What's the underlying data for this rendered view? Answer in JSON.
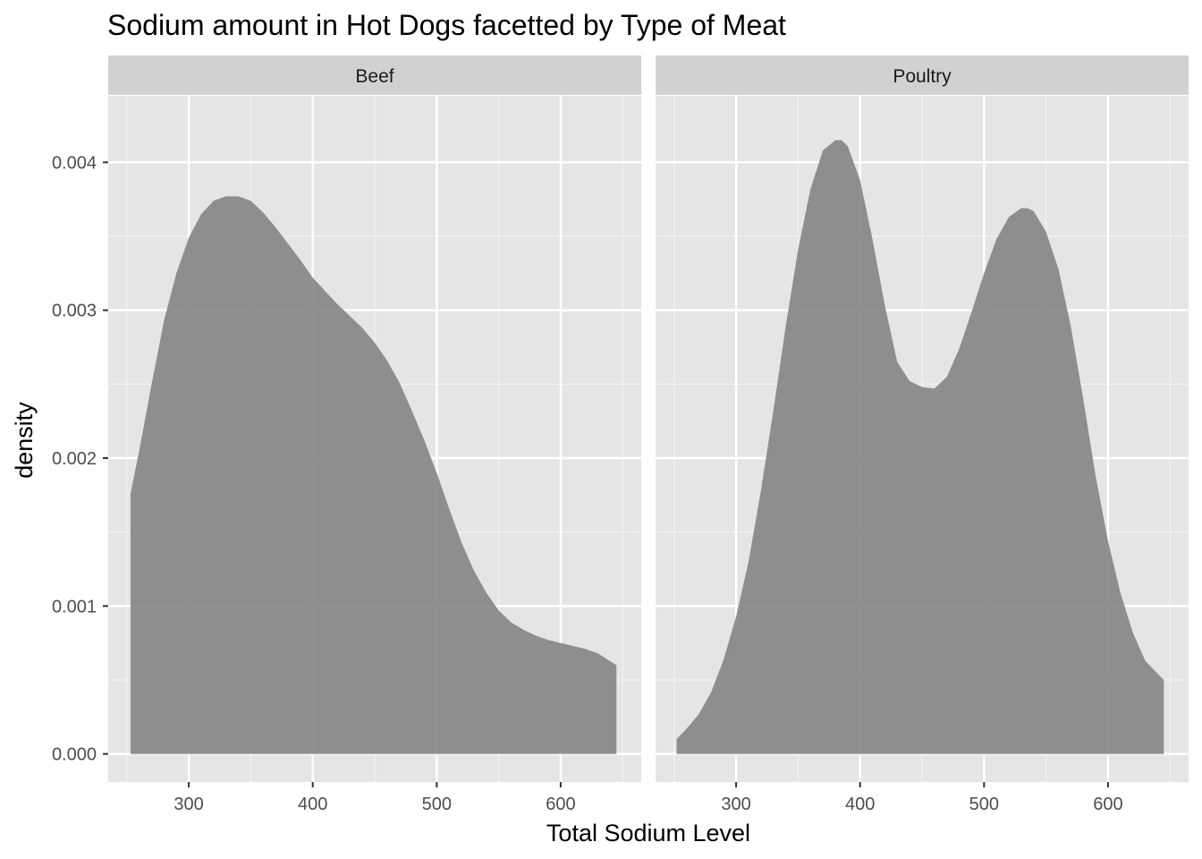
{
  "chart_data": {
    "type": "area",
    "subtype": "density (faceted)",
    "title": "Sodium amount in Hot Dogs facetted by Type of Meat",
    "xlabel": "Total Sodium Level",
    "ylabel": "density",
    "xlim": [
      235,
      665
    ],
    "ylim": [
      -0.00019,
      0.00445
    ],
    "x_ticks": [
      300,
      400,
      500,
      600
    ],
    "x_tick_labels": [
      "300",
      "400",
      "500",
      "600"
    ],
    "y_ticks": [
      0,
      0.001,
      0.002,
      0.003,
      0.004
    ],
    "y_tick_labels": [
      "0.000",
      "0.001",
      "0.002",
      "0.003",
      "0.004"
    ],
    "grid": true,
    "legend": "none",
    "fill_color": "#878787",
    "panel_background": "#e5e5e5",
    "strip_background": "#d1d1d1",
    "facets": [
      {
        "label": "Beef",
        "x": [
          253,
          260,
          270,
          280,
          290,
          300,
          310,
          320,
          330,
          340,
          350,
          360,
          370,
          380,
          390,
          400,
          410,
          420,
          430,
          440,
          450,
          460,
          470,
          480,
          490,
          500,
          510,
          520,
          530,
          540,
          550,
          560,
          570,
          580,
          590,
          600,
          610,
          620,
          630,
          645
        ],
        "y": [
          0.00176,
          0.00205,
          0.0025,
          0.00293,
          0.00325,
          0.00349,
          0.00365,
          0.00374,
          0.00377,
          0.00377,
          0.00374,
          0.00366,
          0.00356,
          0.00345,
          0.00334,
          0.00322,
          0.00313,
          0.00304,
          0.00296,
          0.00288,
          0.00278,
          0.00266,
          0.00251,
          0.00232,
          0.00212,
          0.0019,
          0.00166,
          0.00143,
          0.00124,
          0.00109,
          0.00097,
          0.00089,
          0.00084,
          0.0008,
          0.00077,
          0.00075,
          0.00073,
          0.00071,
          0.00068,
          0.0006
        ]
      },
      {
        "label": "Poultry",
        "x": [
          252,
          260,
          270,
          280,
          290,
          300,
          310,
          320,
          330,
          340,
          350,
          360,
          370,
          380,
          385,
          390,
          400,
          410,
          420,
          430,
          440,
          450,
          460,
          470,
          480,
          490,
          500,
          510,
          520,
          530,
          535,
          540,
          550,
          560,
          570,
          580,
          590,
          600,
          610,
          620,
          630,
          645
        ],
        "y": [
          0.0001,
          0.00017,
          0.00027,
          0.00042,
          0.00064,
          0.00093,
          0.0013,
          0.00178,
          0.00232,
          0.00289,
          0.00341,
          0.00382,
          0.00408,
          0.00415,
          0.00415,
          0.00411,
          0.00388,
          0.00348,
          0.00303,
          0.00265,
          0.00252,
          0.00248,
          0.00247,
          0.00255,
          0.00274,
          0.00299,
          0.00325,
          0.00348,
          0.00363,
          0.00369,
          0.00369,
          0.00367,
          0.00353,
          0.00328,
          0.00289,
          0.0024,
          0.00188,
          0.00144,
          0.00109,
          0.00082,
          0.00063,
          0.0005
        ]
      }
    ]
  }
}
